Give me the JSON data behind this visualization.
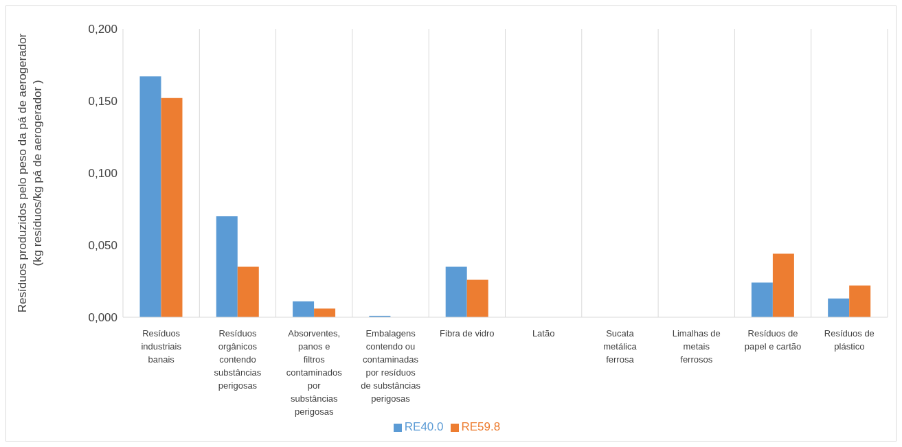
{
  "chart_data": {
    "type": "bar",
    "ylabel": "Resíduos produzidos pelo peso da pá de aerogerador (kg resíduos/kg pá de aerogerador )",
    "categories": [
      "Resíduos industriais banais",
      "Resíduos orgânicos contendo substâncias perigosas",
      "Absorventes, panos e filtros contaminados por substâncias perigosas",
      "Embalagens contendo ou contaminadas por resíduos de substâncias perigosas",
      "Fibra de vidro",
      "Latão",
      "Sucata metálica ferrosa",
      "Limalhas de metais ferrosos",
      "Resíduos de papel e cartão",
      "Resíduos de plástico"
    ],
    "series": [
      {
        "name": "RE40.0",
        "color": "#5b9bd5",
        "values": [
          0.167,
          0.07,
          0.011,
          0.001,
          0.035,
          0,
          0,
          0,
          0.024,
          0.013
        ]
      },
      {
        "name": "RE59.8",
        "color": "#ed7d31",
        "values": [
          0.152,
          0.035,
          0.006,
          0,
          0.026,
          0,
          0,
          0,
          0.044,
          0.022
        ]
      }
    ],
    "ylim": [
      0,
      0.2
    ],
    "yticks": [
      {
        "value": 0,
        "label": "0,000"
      },
      {
        "value": 0.05,
        "label": "0,050"
      },
      {
        "value": 0.1,
        "label": "0,100"
      },
      {
        "value": 0.15,
        "label": "0,150"
      },
      {
        "value": 0.2,
        "label": "0,200"
      }
    ],
    "grid": "x",
    "legend": "bottom"
  }
}
